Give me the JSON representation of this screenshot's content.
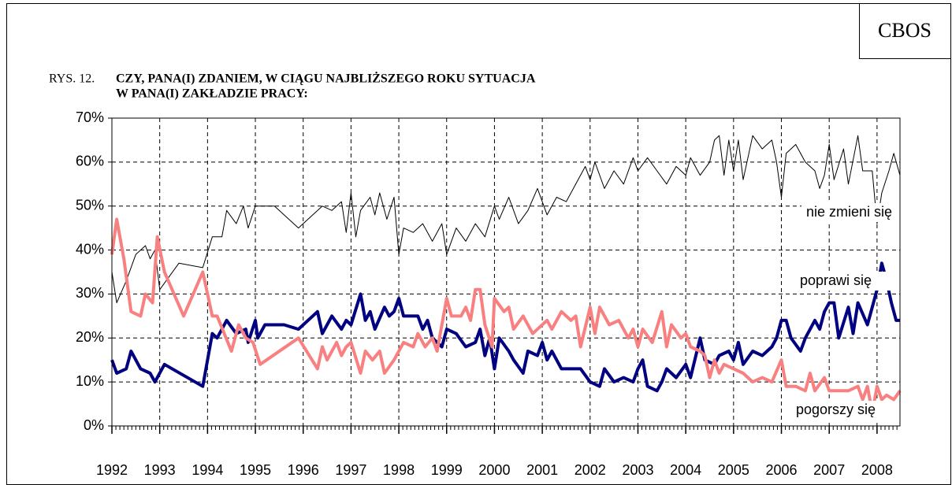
{
  "chart_data": {
    "type": "line",
    "source": "CBOS",
    "figure_label": "RYS. 12.",
    "title_lines": [
      "CZY, PANA(I) ZDANIEM, W CIĄGU NAJBLIŻSZEGO ROKU SYTUACJA",
      "W PANA(I) ZAKŁADZIE PRACY:"
    ],
    "xlim": [
      1992,
      2008.48
    ],
    "xticks": [
      1992,
      1993,
      1994,
      1995,
      1996,
      1997,
      1998,
      1999,
      2000,
      2001,
      2002,
      2003,
      2004,
      2005,
      2006,
      2007,
      2008
    ],
    "ylim": [
      0,
      70
    ],
    "yticks": [
      {
        "value": 0,
        "label": "0%"
      },
      {
        "value": 10,
        "label": "10%"
      },
      {
        "value": 20,
        "label": "20%"
      },
      {
        "value": 30,
        "label": "30%"
      },
      {
        "value": 40,
        "label": "40%"
      },
      {
        "value": 50,
        "label": "50%"
      },
      {
        "value": 60,
        "label": "60%"
      },
      {
        "value": 70,
        "label": "70%"
      }
    ],
    "grid": true,
    "series": [
      {
        "name": "nie zmieni się",
        "color": "#000000",
        "width": 1,
        "x": [
          1992.0,
          1992.1,
          1992.3,
          1992.5,
          1992.7,
          1992.8,
          1992.9,
          1993.0,
          1993.4,
          1993.9,
          1994.1,
          1994.3,
          1994.4,
          1994.6,
          1994.75,
          1994.85,
          1995.0,
          1995.4,
          1995.9,
          1996.2,
          1996.4,
          1996.6,
          1996.8,
          1996.9,
          1997.0,
          1997.1,
          1997.2,
          1997.4,
          1997.5,
          1997.6,
          1997.75,
          1997.9,
          1998.0,
          1998.1,
          1998.3,
          1998.5,
          1998.7,
          1998.9,
          1999.0,
          1999.2,
          1999.4,
          1999.6,
          1999.8,
          2000.0,
          2000.1,
          2000.3,
          2000.5,
          2000.7,
          2000.9,
          2001.1,
          2001.3,
          2001.5,
          2001.7,
          2001.9,
          2002.0,
          2002.1,
          2002.3,
          2002.5,
          2002.7,
          2002.9,
          2003.0,
          2003.2,
          2003.4,
          2003.6,
          2003.8,
          2004.0,
          2004.1,
          2004.3,
          2004.5,
          2004.6,
          2004.7,
          2004.8,
          2004.9,
          2005.0,
          2005.1,
          2005.2,
          2005.4,
          2005.6,
          2005.8,
          2005.9,
          2006.0,
          2006.1,
          2006.3,
          2006.5,
          2006.7,
          2006.8,
          2006.9,
          2007.0,
          2007.1,
          2007.3,
          2007.4,
          2007.6,
          2007.7,
          2007.9,
          2008.0,
          2008.1,
          2008.25,
          2008.35,
          2008.48
        ],
        "values": [
          35,
          28,
          33,
          39,
          41,
          38,
          40,
          31,
          37,
          36,
          43,
          43,
          49,
          46,
          50,
          45,
          50,
          50,
          45,
          48,
          50,
          49,
          51,
          44,
          53,
          43,
          49,
          52,
          48,
          53,
          47,
          52,
          39,
          45,
          44,
          46,
          42,
          46,
          39,
          45,
          42,
          46,
          43,
          50,
          47,
          52,
          46,
          49,
          54,
          48,
          52,
          51,
          55,
          59,
          56,
          60,
          54,
          58,
          55,
          61,
          58,
          61,
          58,
          55,
          59,
          57,
          61,
          57,
          60,
          65,
          66,
          57,
          65,
          58,
          65,
          56,
          66,
          63,
          65,
          60,
          52,
          62,
          64,
          60,
          58,
          54,
          57,
          64,
          56,
          63,
          55,
          66,
          58,
          58,
          46,
          53,
          58,
          62,
          57
        ]
      },
      {
        "name": "poprawi się",
        "color": "#000080",
        "width": 4,
        "x": [
          1992.0,
          1992.1,
          1992.3,
          1992.4,
          1992.6,
          1992.8,
          1992.9,
          1993.1,
          1993.9,
          1994.1,
          1994.2,
          1994.4,
          1994.6,
          1994.8,
          1994.85,
          1995.0,
          1995.05,
          1995.2,
          1995.6,
          1995.9,
          1996.3,
          1996.4,
          1996.6,
          1996.8,
          1996.9,
          1997.0,
          1997.2,
          1997.3,
          1997.4,
          1997.5,
          1997.7,
          1997.8,
          1997.9,
          1998.0,
          1998.1,
          1998.4,
          1998.5,
          1998.6,
          1998.7,
          1998.9,
          1999.0,
          1999.2,
          1999.4,
          1999.6,
          1999.7,
          1999.8,
          1999.9,
          2000.0,
          2000.1,
          2000.3,
          2000.4,
          2000.6,
          2000.7,
          2000.9,
          2001.0,
          2001.1,
          2001.2,
          2001.4,
          2001.8,
          2002.0,
          2002.2,
          2002.3,
          2002.5,
          2002.7,
          2002.9,
          2003.0,
          2003.1,
          2003.2,
          2003.4,
          2003.5,
          2003.6,
          2003.8,
          2004.0,
          2004.1,
          2004.3,
          2004.4,
          2004.6,
          2004.7,
          2004.9,
          2005.0,
          2005.1,
          2005.2,
          2005.4,
          2005.6,
          2005.8,
          2005.9,
          2006.0,
          2006.1,
          2006.2,
          2006.4,
          2006.5,
          2006.7,
          2006.8,
          2006.9,
          2007.0,
          2007.1,
          2007.2,
          2007.4,
          2007.5,
          2007.6,
          2007.8,
          2007.9,
          2008.0,
          2008.1,
          2008.2,
          2008.3,
          2008.4,
          2008.48
        ],
        "values": [
          15,
          12,
          13,
          17,
          13,
          12,
          10,
          14,
          9,
          21,
          20,
          24,
          21,
          22,
          19,
          24,
          20,
          23,
          23,
          22,
          26,
          21,
          25,
          22,
          24,
          23,
          30,
          24,
          26,
          22,
          27,
          25,
          26,
          29,
          25,
          25,
          22,
          24,
          20,
          18,
          22,
          21,
          18,
          19,
          22,
          16,
          20,
          13,
          20,
          17,
          15,
          12,
          17,
          16,
          19,
          15,
          17,
          13,
          13,
          10,
          9,
          13,
          10,
          11,
          10,
          13,
          15,
          9,
          8,
          10,
          13,
          11,
          14,
          11,
          20,
          15,
          14,
          16,
          17,
          15,
          19,
          14,
          17,
          16,
          18,
          20,
          24,
          24,
          20,
          17,
          20,
          24,
          22,
          26,
          28,
          28,
          20,
          27,
          21,
          28,
          23,
          27,
          31,
          37,
          33,
          28,
          24,
          24
        ]
      },
      {
        "name": "pogorszy się",
        "color": "#f88080",
        "width": 4,
        "x": [
          1992.0,
          1992.1,
          1992.25,
          1992.4,
          1992.6,
          1992.7,
          1992.85,
          1992.95,
          1993.1,
          1993.5,
          1993.9,
          1994.1,
          1994.2,
          1994.35,
          1994.5,
          1994.65,
          1994.8,
          1994.95,
          1995.1,
          1995.9,
          1996.3,
          1996.4,
          1996.5,
          1996.7,
          1996.8,
          1996.9,
          1997.0,
          1997.2,
          1997.3,
          1997.45,
          1997.6,
          1997.7,
          1997.9,
          1998.1,
          1998.3,
          1998.4,
          1998.55,
          1998.7,
          1998.8,
          1999.0,
          1999.1,
          1999.3,
          1999.4,
          1999.5,
          1999.6,
          1999.7,
          1999.8,
          1999.95,
          2000.0,
          2000.2,
          2000.3,
          2000.4,
          2000.6,
          2000.8,
          2000.9,
          2001.1,
          2001.2,
          2001.4,
          2001.6,
          2001.7,
          2001.8,
          2002.0,
          2002.1,
          2002.2,
          2002.4,
          2002.6,
          2002.8,
          2002.9,
          2003.0,
          2003.1,
          2003.3,
          2003.5,
          2003.6,
          2003.7,
          2003.9,
          2004.0,
          2004.1,
          2004.3,
          2004.4,
          2004.5,
          2004.6,
          2004.7,
          2004.8,
          2005.0,
          2005.2,
          2005.4,
          2005.6,
          2005.8,
          2006.0,
          2006.1,
          2006.3,
          2006.5,
          2006.6,
          2006.7,
          2006.9,
          2007.0,
          2007.2,
          2007.4,
          2007.6,
          2007.7,
          2007.8,
          2007.9,
          2008.0,
          2008.1,
          2008.2,
          2008.35,
          2008.48
        ],
        "values": [
          39,
          47,
          38,
          26,
          25,
          30,
          28,
          43,
          35,
          25,
          35,
          25,
          25,
          21,
          17,
          23,
          20,
          19,
          14,
          20,
          13,
          18,
          15,
          19,
          16,
          18,
          19,
          12,
          17,
          15,
          17,
          12,
          15,
          19,
          18,
          21,
          18,
          20,
          17,
          29,
          25,
          25,
          27,
          24,
          31,
          31,
          23,
          18,
          29,
          26,
          27,
          22,
          25,
          21,
          22,
          24,
          22,
          26,
          24,
          25,
          18,
          27,
          21,
          27,
          23,
          24,
          20,
          22,
          18,
          22,
          19,
          26,
          18,
          23,
          20,
          21,
          18,
          17,
          16,
          11,
          15,
          12,
          14,
          13,
          12,
          10,
          11,
          10,
          15,
          9,
          9,
          8,
          12,
          8,
          11,
          8,
          8,
          8,
          9,
          6,
          9,
          3,
          9,
          6,
          7,
          6,
          8
        ]
      }
    ]
  }
}
